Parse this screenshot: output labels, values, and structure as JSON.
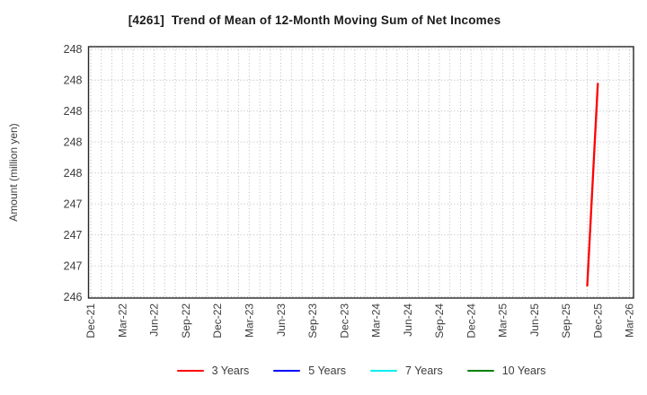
{
  "chart_data": {
    "type": "line",
    "title": "[4261]  Trend of Mean of 12-Month Moving Sum of Net Incomes",
    "ylabel": "Amount (million yen)",
    "xlabel": "",
    "grid": "dotted, minor vertical gridline every month, horizontal gridline every 0.25",
    "legend_position": "bottom-center, no frame",
    "x_tick_labels": [
      "Dec-21",
      "Mar-22",
      "Jun-22",
      "Sep-22",
      "Dec-22",
      "Mar-23",
      "Jun-23",
      "Sep-23",
      "Dec-23",
      "Mar-24",
      "Jun-24",
      "Sep-24",
      "Dec-24",
      "Mar-25",
      "Jun-25",
      "Sep-25",
      "Dec-25",
      "Mar-26"
    ],
    "months_per_major_tick": 3,
    "n_months": 52,
    "xlim_months": [
      -0.21,
      51.38
    ],
    "y_tick_labels": [
      "248",
      "248",
      "248",
      "248",
      "248",
      "247",
      "247",
      "247",
      "246"
    ],
    "y_tick_values": [
      248.5,
      248.25,
      248.0,
      247.75,
      247.5,
      247.25,
      247.0,
      246.75,
      246.5
    ],
    "ylim": [
      246.49,
      248.52
    ],
    "series": [
      {
        "name": "3 Years",
        "color": "#ff0000",
        "points": [
          {
            "month_index": 47,
            "date": "Nov-25",
            "value": 246.59
          },
          {
            "month_index": 48,
            "date": "Dec-25",
            "value": 248.22
          }
        ]
      },
      {
        "name": "5 Years",
        "color": "#0000ff",
        "points": []
      },
      {
        "name": "7 Years",
        "color": "#00eeee",
        "points": []
      },
      {
        "name": "10 Years",
        "color": "#008000",
        "points": []
      }
    ],
    "colors": {
      "axis_border": "#262626",
      "grid": "#b3b3b3",
      "tick_label": "#3d3d3d",
      "title": "#1a1a1a"
    }
  },
  "legend": {
    "items": [
      {
        "label": "3 Years",
        "color": "#ff0000"
      },
      {
        "label": "5 Years",
        "color": "#0000ff"
      },
      {
        "label": "7 Years",
        "color": "#00eeee"
      },
      {
        "label": "10 Years",
        "color": "#008000"
      }
    ]
  }
}
